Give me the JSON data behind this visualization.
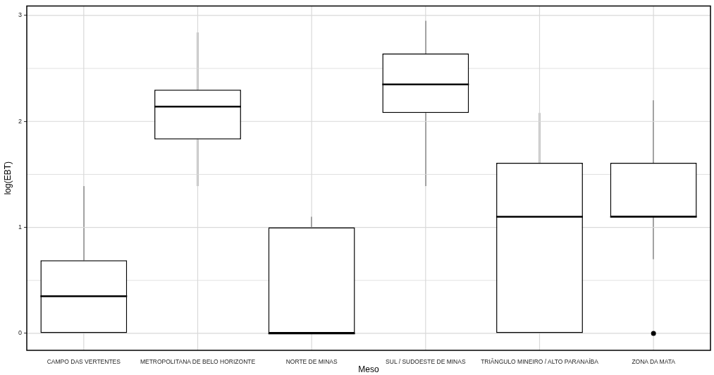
{
  "chart_data": {
    "type": "box",
    "xlabel": "Meso",
    "ylabel": "log(EBT)",
    "categories": [
      "CAMPO DAS VERTENTES",
      "METROPOLITANA DE BELO HORIZONTE",
      "NORTE DE MINAS",
      "SUL / SUDOESTE DE MINAS",
      "TRIÂNGULO MINEIRO / ALTO PARANAÍBA",
      "ZONA DA MATA"
    ],
    "boxes": [
      {
        "low": 0,
        "q1": 0,
        "median": 0.35,
        "q3": 0.69,
        "high": 1.39
      },
      {
        "low": 1.39,
        "q1": 1.83,
        "median": 2.14,
        "q3": 2.3,
        "high": 2.84
      },
      {
        "low": 0,
        "q1": 0,
        "median": 0,
        "q3": 1.0,
        "high": 1.1
      },
      {
        "low": 1.39,
        "q1": 2.08,
        "median": 2.35,
        "q3": 2.64,
        "high": 2.95
      },
      {
        "low": 0,
        "q1": 0,
        "median": 1.1,
        "q3": 1.61,
        "high": 2.08
      },
      {
        "low": 0.7,
        "q1": 1.1,
        "median": 1.1,
        "q3": 1.61,
        "high": 2.2,
        "outliers": [
          0
        ]
      }
    ],
    "color": "#000000",
    "ylim": [
      -0.16,
      3.09
    ],
    "yticks": [
      0,
      1,
      2,
      3
    ],
    "grid": true
  }
}
